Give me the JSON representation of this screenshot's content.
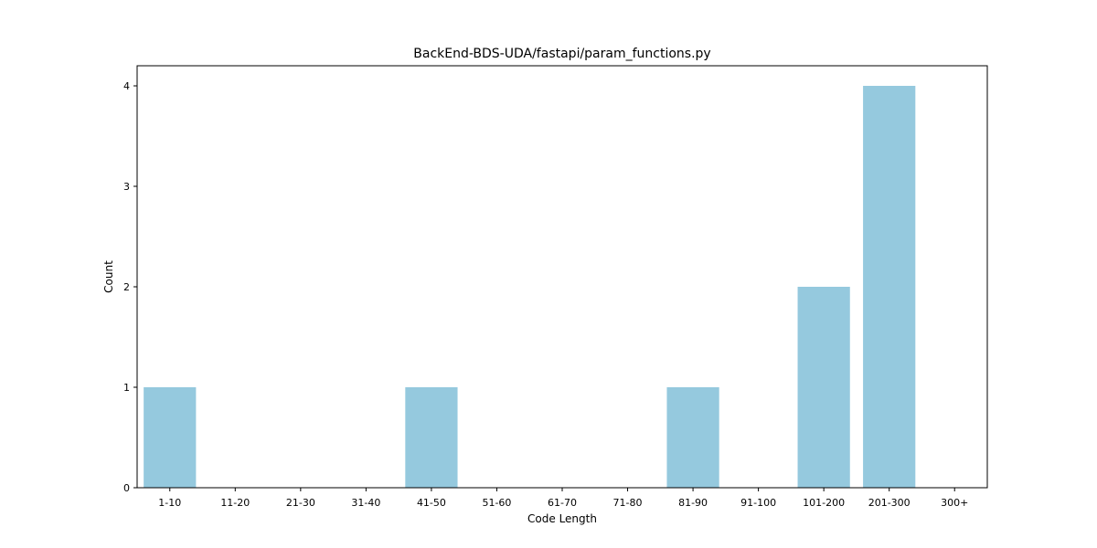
{
  "chart_data": {
    "type": "bar",
    "title": "BackEnd-BDS-UDA/fastapi/param_functions.py",
    "xlabel": "Code Length",
    "ylabel": "Count",
    "categories": [
      "1-10",
      "11-20",
      "21-30",
      "31-40",
      "41-50",
      "51-60",
      "61-70",
      "71-80",
      "81-90",
      "91-100",
      "101-200",
      "201-300",
      "300+"
    ],
    "values": [
      1,
      0,
      0,
      0,
      1,
      0,
      0,
      0,
      1,
      0,
      2,
      4,
      0
    ],
    "yticks": [
      0,
      1,
      2,
      3,
      4
    ],
    "ylim": [
      0,
      4.2
    ],
    "grid": false,
    "bar_color": "#95c9de"
  }
}
